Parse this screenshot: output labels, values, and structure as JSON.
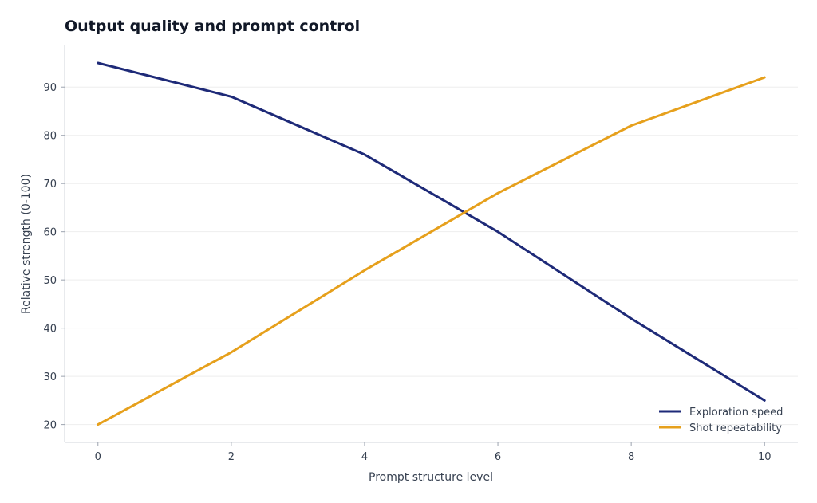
{
  "chart_data": {
    "type": "line",
    "title": "Output quality and prompt control",
    "xlabel": "Prompt structure level",
    "ylabel": "Relative strength (0-100)",
    "x": [
      0,
      2,
      4,
      6,
      8,
      10
    ],
    "xticks": [
      0,
      2,
      4,
      6,
      8,
      10
    ],
    "yticks": [
      20,
      30,
      40,
      50,
      60,
      70,
      80,
      90
    ],
    "xlim": [
      -0.5,
      10.5
    ],
    "ylim": [
      16.3,
      98.8
    ],
    "grid": "horizontal",
    "legend_position": "bottom-right",
    "series": [
      {
        "name": "Exploration speed",
        "color": "#1e2a78",
        "values": [
          95,
          88,
          76,
          60,
          42,
          25
        ]
      },
      {
        "name": "Shot repeatability",
        "color": "#e6a01c",
        "values": [
          20,
          35,
          52,
          68,
          82,
          92
        ]
      }
    ]
  }
}
